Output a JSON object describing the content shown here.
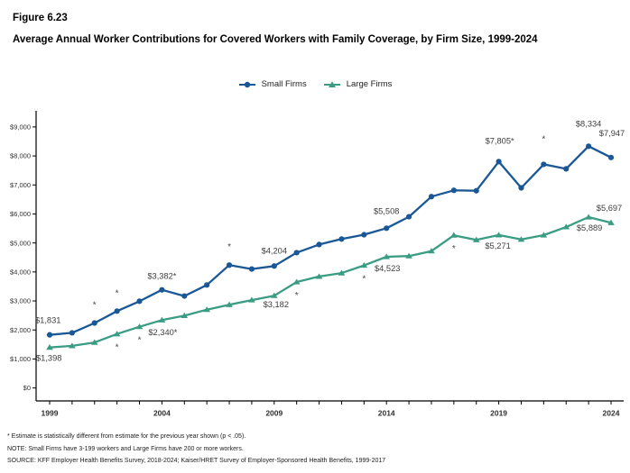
{
  "figure": {
    "label": "Figure 6.23",
    "title": "Average Annual Worker Contributions for Covered Workers with Family Coverage, by Firm Size, 1999-2024"
  },
  "legend": {
    "items": [
      {
        "label": "Small Firms",
        "marker": "circle",
        "color": "#1A5796"
      },
      {
        "label": "Large Firms",
        "marker": "triangle",
        "color": "#3A9C83"
      }
    ]
  },
  "chart_data": {
    "type": "line",
    "x": [
      1999,
      2000,
      2001,
      2002,
      2003,
      2004,
      2005,
      2006,
      2007,
      2008,
      2009,
      2010,
      2011,
      2012,
      2013,
      2014,
      2015,
      2016,
      2017,
      2018,
      2019,
      2020,
      2021,
      2022,
      2023,
      2024
    ],
    "x_axis_labeled_ticks": [
      "1999",
      "2004",
      "2009",
      "2014",
      "2019",
      "2024"
    ],
    "ylim": [
      0,
      9000
    ],
    "y_tick_step": 1000,
    "y_tick_labels": [
      "$0",
      "$1,000",
      "$2,000",
      "$3,000",
      "$4,000",
      "$5,000",
      "$6,000",
      "$7,000",
      "$8,000",
      "$9,000"
    ],
    "grid": false,
    "legend_position": "top-center",
    "series": [
      {
        "name": "Small Firms",
        "color": "#1A5796",
        "marker": "circle",
        "values": [
          1831,
          1900,
          2240,
          2650,
          2990,
          3382,
          3170,
          3550,
          4236,
          4101,
          4204,
          4665,
          4946,
          5134,
          5284,
          5508,
          5904,
          6597,
          6814,
          6800,
          7805,
          6900,
          7710,
          7556,
          8334,
          7947
        ],
        "value_labels": {
          "1999": "$1,831",
          "2004": "$3,382*",
          "2009": "$4,204",
          "2014": "$5,508",
          "2019": "$7,805*",
          "2023": "$8,334",
          "2024": "$7,947"
        },
        "asterisk_years": [
          2001,
          2002,
          2007,
          2021
        ]
      },
      {
        "name": "Large Firms",
        "color": "#3A9C83",
        "marker": "triangle",
        "values": [
          1398,
          1450,
          1568,
          1860,
          2110,
          2340,
          2490,
          2700,
          2870,
          3030,
          3182,
          3652,
          3842,
          3960,
          4226,
          4523,
          4549,
          4719,
          5264,
          5105,
          5271,
          5120,
          5269,
          5550,
          5889,
          5697
        ],
        "value_labels": {
          "1999": "$1,398",
          "2004": "$2,340*",
          "2009": "$3,182",
          "2014": "$4,523",
          "2019": "$5,271",
          "2023": "$5,889",
          "2024": "$5,697"
        },
        "asterisk_years": [
          2002,
          2003,
          2010,
          2013,
          2017
        ]
      }
    ]
  },
  "footnotes": {
    "significance": "* Estimate is statistically different from estimate for the previous year shown (p < .05).",
    "note": "NOTE: Small Firms have 3-199 workers and Large Firms have 200 or more workers.",
    "source": "SOURCE: KFF Employer Health Benefits Survey, 2018-2024; Kaiser/HRET Survey of Employer-Sponsored Health Benefits, 1999-2017"
  }
}
